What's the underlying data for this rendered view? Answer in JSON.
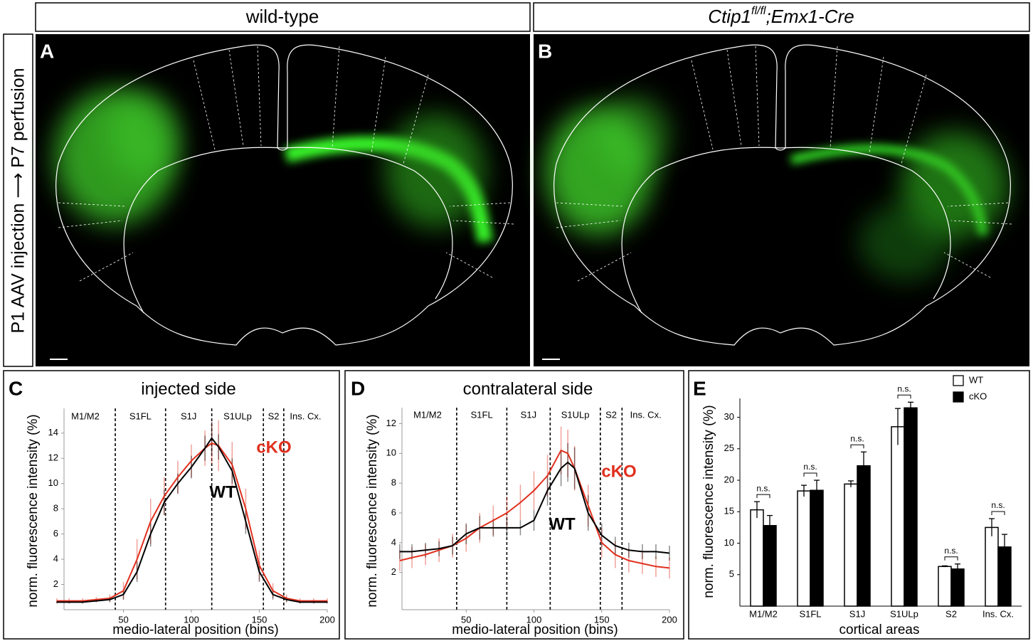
{
  "header": {
    "left_title": "wild-type",
    "right_title": {
      "gene": "Ctip1",
      "superscript": "fl/fl",
      "rest": ";Emx1-Cre"
    }
  },
  "side_label": "P1 AAV injection ⟶ P7 perfusion",
  "images": [
    {
      "label": "A"
    },
    {
      "label": "B"
    }
  ],
  "chart_data": [
    {
      "panel": "C",
      "type": "line",
      "title": "injected side",
      "xlabel": "medio-lateral position (bins)",
      "ylabel": "norm. fluorescence intensity (%)",
      "xlim": [
        0,
        200
      ],
      "xticks": [
        50,
        100,
        150,
        200
      ],
      "ylim": [
        0,
        15
      ],
      "yticks": [
        2,
        4,
        6,
        8,
        10,
        12,
        14
      ],
      "region_labels": [
        "M1/M2",
        "S1FL",
        "S1J",
        "S1ULp",
        "S2",
        "Ins. Cx."
      ],
      "region_boundaries": [
        44,
        81,
        115,
        153,
        168
      ],
      "x": [
        1,
        10,
        20,
        30,
        40,
        50,
        60,
        70,
        80,
        90,
        100,
        110,
        115,
        120,
        130,
        140,
        150,
        160,
        170,
        180,
        190,
        200
      ],
      "series": [
        {
          "name": "WT",
          "color": "#000000",
          "values": [
            0.6,
            0.6,
            0.6,
            0.7,
            0.8,
            1.2,
            3.0,
            6.0,
            8.5,
            10.0,
            11.3,
            12.8,
            13.6,
            12.9,
            11.0,
            7.0,
            3.0,
            1.2,
            0.8,
            0.6,
            0.6,
            0.6
          ],
          "errors": [
            0.1,
            0.1,
            0.1,
            0.1,
            0.2,
            0.4,
            0.8,
            1.0,
            1.0,
            0.8,
            0.9,
            1.0,
            1.3,
            1.0,
            1.0,
            1.0,
            0.8,
            0.4,
            0.2,
            0.1,
            0.1,
            0.1
          ]
        },
        {
          "name": "cKO",
          "color": "#e0301e",
          "values": [
            0.7,
            0.7,
            0.7,
            0.8,
            0.9,
            1.5,
            4.0,
            7.0,
            9.0,
            10.5,
            11.8,
            12.8,
            13.2,
            13.0,
            11.5,
            8.0,
            3.5,
            1.5,
            0.9,
            0.7,
            0.7,
            0.7
          ],
          "errors": [
            0.2,
            0.2,
            0.2,
            0.2,
            0.3,
            0.7,
            1.6,
            1.8,
            1.5,
            1.3,
            1.3,
            1.4,
            1.6,
            2.0,
            1.8,
            1.6,
            1.2,
            0.6,
            0.3,
            0.2,
            0.2,
            0.2
          ]
        }
      ]
    },
    {
      "panel": "D",
      "type": "line",
      "title": "contralateral side",
      "xlabel": "medio-lateral position (bins)",
      "ylabel": "norm. fluorescence intensity (%)",
      "xlim": [
        0,
        200
      ],
      "xticks": [
        50,
        100,
        150,
        200
      ],
      "ylim": [
        -0.5,
        12.5
      ],
      "yticks": [
        2,
        4,
        6,
        8,
        10,
        12
      ],
      "region_labels": [
        "M1/M2",
        "S1FL",
        "S1J",
        "S1ULp",
        "S2",
        "Ins. Cx."
      ],
      "region_boundaries": [
        43,
        80,
        112,
        149,
        165
      ],
      "x": [
        1,
        10,
        20,
        30,
        40,
        50,
        60,
        70,
        80,
        90,
        100,
        110,
        120,
        125,
        130,
        140,
        150,
        160,
        170,
        180,
        190,
        200
      ],
      "series": [
        {
          "name": "WT",
          "color": "#000000",
          "values": [
            3.4,
            3.4,
            3.5,
            3.6,
            3.8,
            4.6,
            5.0,
            5.0,
            5.0,
            5.0,
            5.5,
            7.5,
            9.0,
            9.4,
            9.0,
            6.0,
            4.5,
            3.8,
            3.5,
            3.4,
            3.4,
            3.3
          ],
          "errors": [
            0.5,
            0.5,
            0.5,
            0.5,
            0.6,
            0.7,
            0.8,
            0.6,
            0.6,
            0.5,
            0.7,
            1.0,
            1.2,
            1.3,
            1.4,
            1.2,
            0.8,
            0.6,
            0.5,
            0.5,
            0.5,
            0.5
          ]
        },
        {
          "name": "cKO",
          "color": "#e0301e",
          "values": [
            2.8,
            3.0,
            3.2,
            3.5,
            3.8,
            4.3,
            5.0,
            5.5,
            6.0,
            6.7,
            7.5,
            8.5,
            10.2,
            10.0,
            9.0,
            6.5,
            4.0,
            3.2,
            2.8,
            2.6,
            2.4,
            2.3
          ],
          "errors": [
            0.7,
            0.7,
            0.7,
            0.8,
            0.8,
            0.9,
            1.0,
            1.0,
            1.1,
            1.2,
            1.3,
            1.4,
            1.6,
            1.6,
            1.5,
            1.4,
            1.0,
            0.9,
            0.8,
            0.7,
            0.7,
            0.7
          ]
        }
      ]
    },
    {
      "panel": "E",
      "type": "bar",
      "xlabel": "cortical areas",
      "ylabel": "norm. fluorescence intensity (%)",
      "categories": [
        "M1/M2",
        "S1FL",
        "S1J",
        "S1ULp",
        "S2",
        "Ins. Cx."
      ],
      "ylim": [
        0,
        33
      ],
      "yticks": [
        5,
        10,
        15,
        20,
        25,
        30
      ],
      "significance": [
        "n.s.",
        "n.s.",
        "n.s.",
        "n.s.",
        "n.s.",
        "n.s."
      ],
      "series": [
        {
          "name": "WT",
          "color": "#ffffff",
          "values": [
            15.3,
            18.3,
            19.4,
            28.5,
            6.3,
            12.5
          ],
          "errors": [
            1.3,
            0.9,
            0.5,
            2.9,
            0.1,
            1.4
          ]
        },
        {
          "name": "cKO",
          "color": "#000000",
          "values": [
            12.8,
            18.4,
            22.3,
            31.5,
            5.9,
            9.4
          ],
          "errors": [
            1.6,
            1.6,
            2.2,
            0.9,
            0.8,
            2.0
          ]
        }
      ]
    }
  ]
}
